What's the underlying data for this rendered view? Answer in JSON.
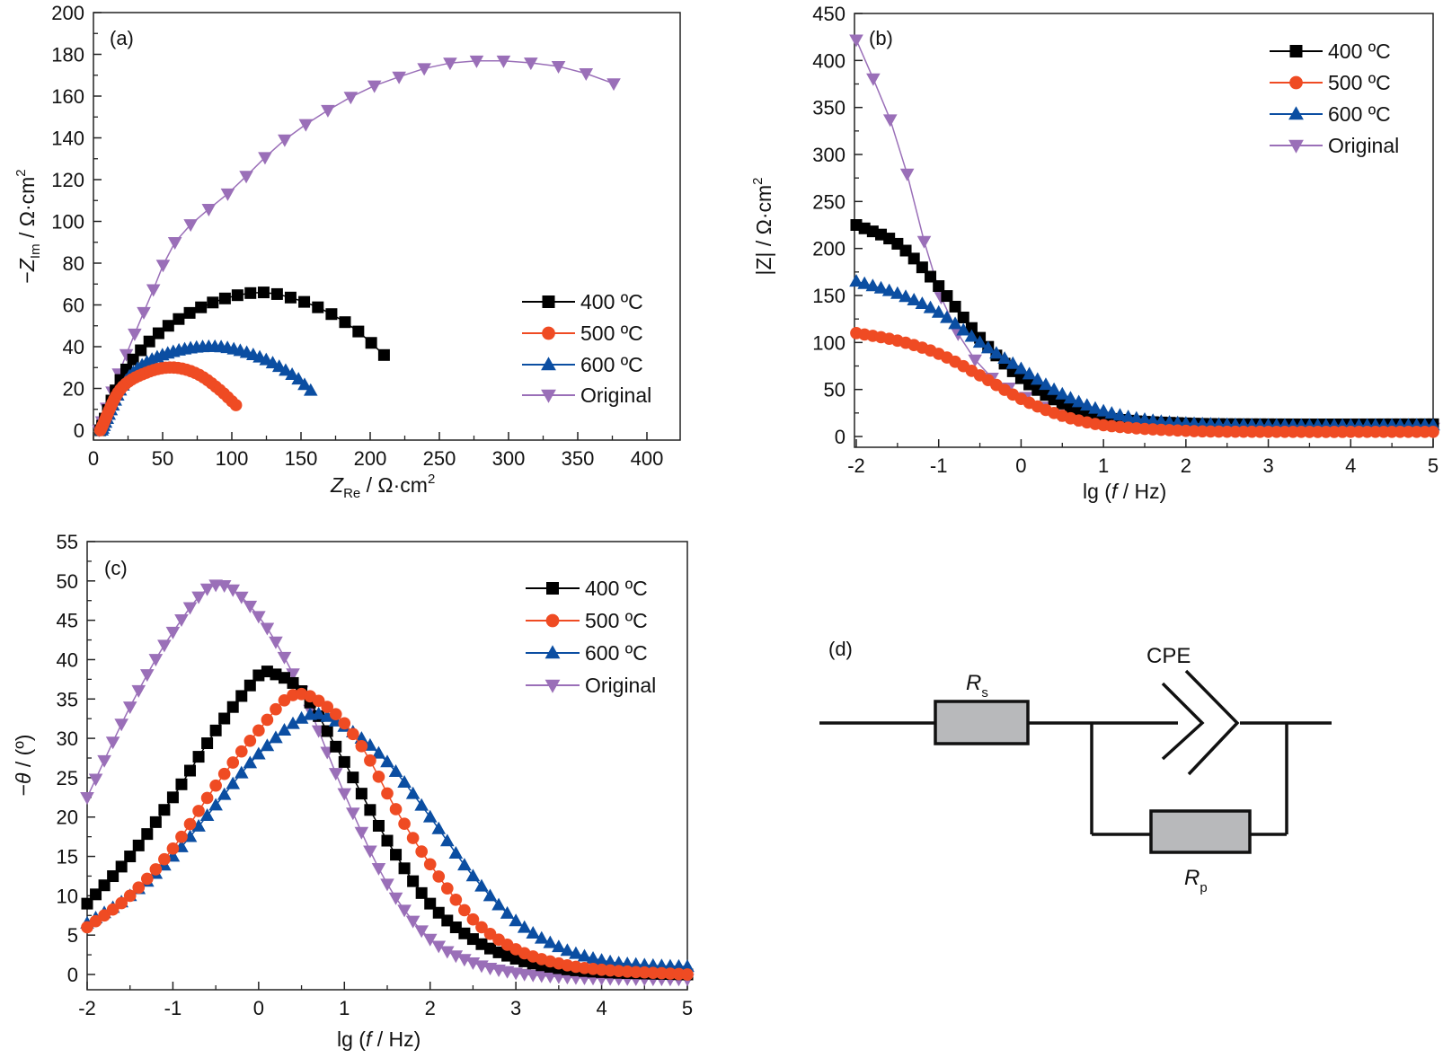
{
  "series_colors": {
    "400": "#000000",
    "500": "#ef4b23",
    "600": "#0b4ea2",
    "original": "#9a6fb8"
  },
  "legend": [
    {
      "key": "400",
      "label": "400 ºC",
      "marker": "square"
    },
    {
      "key": "500",
      "label": "500 ºC",
      "marker": "circle"
    },
    {
      "key": "600",
      "label": "600 ºC",
      "marker": "triangle-up"
    },
    {
      "key": "original",
      "label": "Original",
      "marker": "triangle-down"
    }
  ],
  "chart_data": [
    {
      "id": "a",
      "type": "scatter",
      "panel_label": "(a)",
      "title": "",
      "xlabel": "Z_Re / Ω·cm²",
      "ylabel": "−Z_Im / Ω·cm²",
      "xlim": [
        0,
        420
      ],
      "ylim": [
        0,
        200
      ],
      "xticks": [
        0,
        50,
        100,
        150,
        200,
        250,
        300,
        350,
        400
      ],
      "yticks": [
        0,
        20,
        40,
        60,
        80,
        100,
        120,
        140,
        160,
        180,
        200
      ],
      "legend_position": "bottom-right",
      "series": [
        {
          "key": "400",
          "name": "400 ºC",
          "model": "nyquist",
          "Rs": 5,
          "Rp": 240,
          "n": 0.82,
          "fmin_lg": -2,
          "fmax_lg": 5,
          "points": 30,
          "sample": [
            [
              5,
              0
            ],
            [
              18,
              22
            ],
            [
              30,
              35
            ],
            [
              50,
              48
            ],
            [
              75,
              58
            ],
            [
              100,
              64
            ],
            [
              122,
              66
            ],
            [
              140,
              64
            ],
            [
              165,
              58
            ],
            [
              190,
              48
            ],
            [
              210,
              36
            ]
          ]
        },
        {
          "key": "500",
          "name": "500 ºC",
          "model": "nyquist",
          "Rs": 5,
          "Rp": 118,
          "n": 0.79,
          "fmin_lg": -2,
          "fmax_lg": 5,
          "points": 45,
          "sample": [
            [
              5,
              0
            ],
            [
              20,
              20
            ],
            [
              40,
              28
            ],
            [
              58,
              30
            ],
            [
              75,
              27
            ],
            [
              90,
              20
            ],
            [
              103,
              12
            ]
          ]
        },
        {
          "key": "600",
          "name": "600 ºC",
          "model": "nyquist",
          "Rs": 6,
          "Rp": 170,
          "n": 0.76,
          "fmin_lg": -2,
          "fmax_lg": 5,
          "points": 45,
          "sample": [
            [
              6,
              0
            ],
            [
              25,
              25
            ],
            [
              50,
              36
            ],
            [
              88,
              40
            ],
            [
              120,
              35
            ],
            [
              145,
              26
            ],
            [
              157,
              19
            ]
          ]
        },
        {
          "key": "original",
          "name": "Original",
          "model": "nyquist",
          "Rs": 4,
          "Rp": 430,
          "n": 0.84,
          "fmin_lg": -2,
          "fmax_lg": 5,
          "points": 30,
          "sample": [
            [
              4,
              0
            ],
            [
              20,
              30
            ],
            [
              40,
              62
            ],
            [
              60,
              91
            ],
            [
              100,
              115
            ],
            [
              140,
              140
            ],
            [
              190,
              161
            ],
            [
              220,
              169
            ],
            [
              250,
              175
            ],
            [
              282,
              177
            ],
            [
              315,
              176
            ],
            [
              345,
              173
            ],
            [
              376,
              166
            ]
          ]
        }
      ]
    },
    {
      "id": "b",
      "type": "scatter",
      "panel_label": "(b)",
      "title": "",
      "xlabel": "lg (f / Hz)",
      "ylabel": "|Z| / Ω·cm²",
      "xlim": [
        -2,
        5
      ],
      "ylim": [
        0,
        450
      ],
      "xticks": [
        -2,
        -1,
        0,
        1,
        2,
        3,
        4,
        5
      ],
      "yticks": [
        0,
        50,
        100,
        150,
        200,
        250,
        300,
        350,
        400,
        450
      ],
      "legend_position": "top-right",
      "series": [
        {
          "key": "400",
          "name": "400 ºC",
          "model": "bode_mag",
          "points": 71,
          "sample": [
            [
              -2,
              225
            ],
            [
              -1.5,
              205
            ],
            [
              -1,
              160
            ],
            [
              -0.5,
              105
            ],
            [
              0,
              62
            ],
            [
              0.5,
              35
            ],
            [
              1,
              20
            ],
            [
              2,
              14
            ],
            [
              3,
              13
            ],
            [
              5,
              13
            ]
          ]
        },
        {
          "key": "500",
          "name": "500 ºC",
          "model": "bode_mag",
          "points": 71,
          "sample": [
            [
              -2,
              110
            ],
            [
              -1.5,
              102
            ],
            [
              -1,
              88
            ],
            [
              -0.5,
              65
            ],
            [
              0,
              40
            ],
            [
              0.5,
              22
            ],
            [
              1,
              12
            ],
            [
              2,
              6
            ],
            [
              3,
              5
            ],
            [
              5,
              5
            ]
          ]
        },
        {
          "key": "600",
          "name": "600 ºC",
          "model": "bode_mag",
          "points": 71,
          "sample": [
            [
              -2,
              165
            ],
            [
              -1.5,
              152
            ],
            [
              -1,
              132
            ],
            [
              -0.5,
              100
            ],
            [
              0,
              72
            ],
            [
              0.5,
              45
            ],
            [
              1,
              27
            ],
            [
              1.5,
              18
            ],
            [
              2,
              14
            ],
            [
              3,
              12
            ],
            [
              5,
              12
            ]
          ]
        },
        {
          "key": "original",
          "name": "Original",
          "model": "bode_mag",
          "points": 35,
          "sample": [
            [
              -2,
              422
            ],
            [
              -1.5,
              315
            ],
            [
              -1,
              155
            ],
            [
              -0.5,
              75
            ],
            [
              0,
              45
            ],
            [
              0.5,
              22
            ],
            [
              1,
              14
            ],
            [
              2,
              10
            ],
            [
              3,
              9
            ],
            [
              5,
              9
            ]
          ]
        }
      ]
    },
    {
      "id": "c",
      "type": "scatter",
      "panel_label": "(c)",
      "title": "",
      "xlabel": "lg (f / Hz)",
      "ylabel": "−θ / (º)",
      "xlim": [
        -2,
        5
      ],
      "ylim": [
        -2,
        55
      ],
      "xticks": [
        -2,
        -1,
        0,
        1,
        2,
        3,
        4,
        5
      ],
      "yticks": [
        0,
        5,
        10,
        15,
        20,
        25,
        30,
        35,
        40,
        45,
        50,
        55
      ],
      "legend_position": "top-right",
      "series": [
        {
          "key": "400",
          "name": "400 ºC",
          "points": 71,
          "sample": [
            [
              -2,
              9
            ],
            [
              -1.5,
              15
            ],
            [
              -1,
              22.5
            ],
            [
              -0.5,
              31
            ],
            [
              0,
              38
            ],
            [
              0.1,
              38.5
            ],
            [
              0.5,
              36
            ],
            [
              1,
              27
            ],
            [
              1.5,
              17
            ],
            [
              2,
              9
            ],
            [
              2.5,
              4.5
            ],
            [
              3,
              2
            ],
            [
              3.5,
              0.8
            ],
            [
              4,
              0.3
            ],
            [
              5,
              0
            ]
          ]
        },
        {
          "key": "500",
          "name": "500 ºC",
          "points": 71,
          "sample": [
            [
              -2,
              6
            ],
            [
              -1.5,
              10
            ],
            [
              -1,
              16
            ],
            [
              -0.5,
              24
            ],
            [
              0,
              31
            ],
            [
              0.4,
              35.5
            ],
            [
              0.8,
              34
            ],
            [
              1.2,
              29
            ],
            [
              1.6,
              21
            ],
            [
              2,
              14
            ],
            [
              2.5,
              7
            ],
            [
              3,
              3.2
            ],
            [
              3.5,
              1.4
            ],
            [
              4,
              0.6
            ],
            [
              5,
              0
            ]
          ]
        },
        {
          "key": "600",
          "name": "600 ºC",
          "points": 71,
          "sample": [
            [
              -2,
              6.5
            ],
            [
              -1.5,
              10
            ],
            [
              -1,
              15
            ],
            [
              -0.5,
              21.5
            ],
            [
              0,
              28
            ],
            [
              0.6,
              33
            ],
            [
              1,
              31.5
            ],
            [
              1.5,
              27
            ],
            [
              2,
              20
            ],
            [
              2.5,
              12.5
            ],
            [
              3,
              6.8
            ],
            [
              3.5,
              3.5
            ],
            [
              4,
              1.8
            ],
            [
              4.5,
              1.2
            ],
            [
              5,
              1
            ]
          ]
        },
        {
          "key": "original",
          "name": "Original",
          "points": 71,
          "sample": [
            [
              -2,
              22.5
            ],
            [
              -1.5,
              34
            ],
            [
              -1,
              43.5
            ],
            [
              -0.5,
              49.5
            ],
            [
              0,
              45.5
            ],
            [
              0.5,
              36
            ],
            [
              1,
              23
            ],
            [
              1.5,
              11.5
            ],
            [
              2,
              4.5
            ],
            [
              2.5,
              1.5
            ],
            [
              3,
              0.2
            ],
            [
              3.5,
              -0.3
            ],
            [
              4,
              -0.5
            ],
            [
              5,
              -0.6
            ]
          ]
        }
      ]
    }
  ],
  "circuit": {
    "panel_label": "(d)",
    "rs_label": "R",
    "rs_sub": "s",
    "rp_label": "R",
    "rp_sub": "p",
    "cpe_label": "CPE"
  }
}
